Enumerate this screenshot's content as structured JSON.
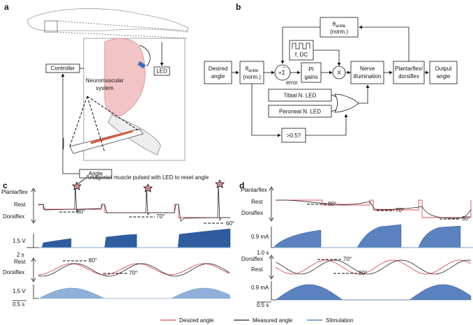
{
  "panel_a": {
    "label": "a",
    "controller": "Controller",
    "system": [
      "Neuromuscular",
      "system"
    ],
    "led": "LED",
    "angle": "Angle"
  },
  "panel_b": {
    "label": "b",
    "desired": [
      "Desired",
      "angle"
    ],
    "theta_in": {
      "symbol": "θ",
      "subscript": "ankle",
      "note": "(norm.)"
    },
    "plus": "+",
    "sum": "Σ",
    "minus": "−",
    "error": "error",
    "pi": [
      "PI",
      "gains"
    ],
    "pulse": "f, DC",
    "multiply": "X",
    "nerve": [
      "Nerve",
      "illumination"
    ],
    "plant": [
      "Plantarflex/",
      "dorsiflex"
    ],
    "output": [
      "Output",
      "angle"
    ],
    "theta_fb": {
      "symbol": "θ",
      "subscript": "ankle",
      "note": "(norm.)"
    },
    "tibial": "Tibial N. LED",
    "peroneal": "Peroneal N. LED",
    "threshold": ">0.5?"
  },
  "panel_c": {
    "label": "c",
    "annotation": "Antagonist muscle pulsed with LED to reset angle",
    "top": {
      "labels": [
        "Plantarflex",
        "Rest",
        "Dorsiflex"
      ],
      "angles": [
        "80°",
        "70°",
        "60°"
      ],
      "stim_scale": "1.5 V",
      "time_scale": "2 s"
    },
    "bottom": {
      "labels": [
        "Rest",
        "Dorsiflex"
      ],
      "angles": [
        "80°",
        "70°"
      ],
      "stim_scale": "1.5 V",
      "time_scale": "0.5 s"
    }
  },
  "panel_d": {
    "label": "d",
    "top": {
      "labels": [
        "Plantarflex",
        "Rest",
        "Dorsiflex"
      ],
      "angles": [
        "80°",
        "70°",
        "60°"
      ],
      "stim_scale": "0.9 mA",
      "time_scale": "1.0 s"
    },
    "bottom": {
      "labels": [
        "Dorsiflex",
        "Rest"
      ],
      "angles": [
        "70°",
        "80°"
      ],
      "stim_scale": "0.9 mA",
      "time_scale": "0.5 s"
    }
  },
  "legend": [
    "Desired angle",
    "Measured angle",
    "Stimulation"
  ]
}
